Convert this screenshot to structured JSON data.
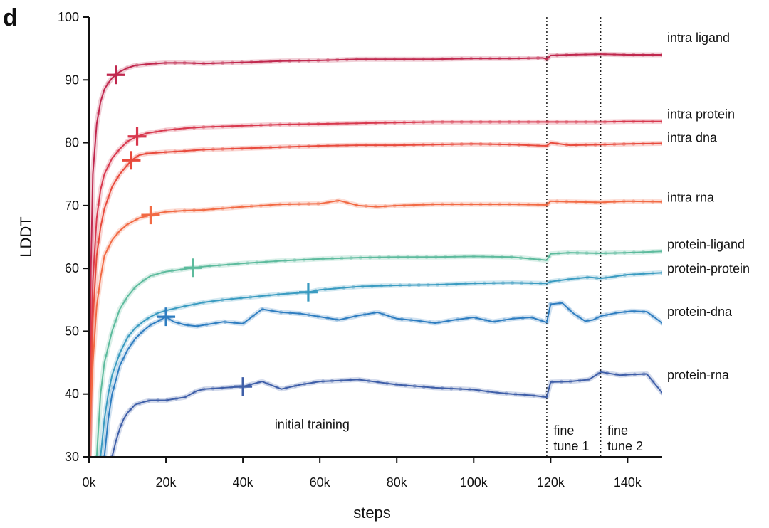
{
  "chart_data": {
    "type": "line",
    "panel_letter": "d",
    "xlabel": "steps",
    "ylabel": "LDDT",
    "xlim": [
      0,
      149000
    ],
    "ylim": [
      30,
      100
    ],
    "x_ticks": [
      0,
      20000,
      40000,
      60000,
      80000,
      100000,
      120000,
      140000
    ],
    "x_tick_labels": [
      "0k",
      "20k",
      "40k",
      "60k",
      "80k",
      "100k",
      "120k",
      "140k"
    ],
    "y_ticks": [
      30,
      40,
      50,
      60,
      70,
      80,
      90,
      100
    ],
    "y_tick_labels": [
      "30",
      "40",
      "50",
      "60",
      "70",
      "80",
      "90",
      "100"
    ],
    "grid": false,
    "phase_boundaries": [
      119000,
      133000
    ],
    "phases": [
      {
        "lines": [
          "initial training"
        ],
        "x": 58000,
        "y": 34.5
      },
      {
        "lines": [
          "fine",
          "tune 1"
        ],
        "x": 120000,
        "y": 33.5
      },
      {
        "lines": [
          "fine",
          "tune 2"
        ],
        "x": 134000,
        "y": 33.5
      }
    ],
    "series": [
      {
        "name": "intra ligand",
        "color": "#c0284e",
        "marker": {
          "x": 7000,
          "y": 90.8
        },
        "x": [
          0,
          500,
          1000,
          2000,
          3000,
          4000,
          5000,
          6000,
          7000,
          8000,
          10000,
          12000,
          15000,
          20000,
          25000,
          30000,
          40000,
          50000,
          60000,
          70000,
          80000,
          90000,
          100000,
          110000,
          118000,
          119000,
          120000,
          125000,
          133000,
          140000,
          149000
        ],
        "y": [
          30,
          60,
          75,
          83,
          86.5,
          88.5,
          89.5,
          90.3,
          90.8,
          91.3,
          91.9,
          92.3,
          92.5,
          92.7,
          92.7,
          92.6,
          92.8,
          93.0,
          93.1,
          93.3,
          93.3,
          93.3,
          93.4,
          93.4,
          93.5,
          93.3,
          93.9,
          94.0,
          94.1,
          94.0,
          94.0
        ]
      },
      {
        "name": "intra protein",
        "color": "#d8384e",
        "marker": {
          "x": 12500,
          "y": 81.0
        },
        "x": [
          0,
          500,
          1000,
          2000,
          3000,
          4000,
          6000,
          8000,
          10000,
          12500,
          15000,
          20000,
          25000,
          30000,
          40000,
          50000,
          60000,
          70000,
          80000,
          90000,
          100000,
          110000,
          119000,
          125000,
          133000,
          140000,
          149000
        ],
        "y": [
          30,
          45,
          58,
          68,
          72.5,
          75,
          77.5,
          79,
          80.2,
          81.0,
          81.5,
          82.0,
          82.3,
          82.5,
          82.7,
          82.9,
          83.0,
          83.1,
          83.2,
          83.3,
          83.3,
          83.3,
          83.3,
          83.3,
          83.3,
          83.4,
          83.4
        ]
      },
      {
        "name": "intra dna",
        "color": "#e84a3c",
        "marker": {
          "x": 11000,
          "y": 77.2
        },
        "x": [
          0,
          500,
          1000,
          2000,
          3000,
          4000,
          6000,
          8000,
          11000,
          13000,
          15000,
          20000,
          30000,
          40000,
          50000,
          60000,
          70000,
          80000,
          90000,
          100000,
          110000,
          119000,
          120000,
          125000,
          133000,
          140000,
          149000
        ],
        "y": [
          30,
          42,
          52,
          62,
          66.5,
          69.5,
          73,
          75,
          77.2,
          78.0,
          78.3,
          78.5,
          78.9,
          79.1,
          79.3,
          79.5,
          79.6,
          79.6,
          79.7,
          79.8,
          79.7,
          79.5,
          80.0,
          79.6,
          79.7,
          79.8,
          79.9
        ]
      },
      {
        "name": "intra rna",
        "color": "#f26a44",
        "marker": {
          "x": 16000,
          "y": 68.5
        },
        "x": [
          0,
          500,
          1000,
          2000,
          3000,
          4000,
          6000,
          8000,
          10000,
          13000,
          16000,
          18000,
          20000,
          25000,
          30000,
          40000,
          50000,
          60000,
          65000,
          70000,
          75000,
          80000,
          90000,
          100000,
          110000,
          119000,
          120000,
          125000,
          133000,
          140000,
          149000
        ],
        "y": [
          30,
          38,
          45,
          54,
          58.5,
          62,
          64.5,
          66,
          67,
          68,
          68.5,
          68.8,
          69.0,
          69.2,
          69.3,
          69.8,
          70.2,
          70.3,
          70.8,
          70.0,
          69.8,
          70.0,
          70.2,
          70.2,
          70.2,
          70.1,
          70.7,
          70.6,
          70.5,
          70.7,
          70.6
        ]
      },
      {
        "name": "protein-ligand",
        "color": "#5dbb9d",
        "marker": {
          "x": 27000,
          "y": 60.1
        },
        "x": [
          2000,
          3000,
          4000,
          6000,
          8000,
          10000,
          12000,
          14000,
          16000,
          20000,
          25000,
          27000,
          30000,
          40000,
          50000,
          60000,
          70000,
          80000,
          90000,
          100000,
          110000,
          119000,
          120000,
          125000,
          133000,
          140000,
          149000
        ],
        "y": [
          30,
          40,
          45,
          50,
          53.5,
          55.5,
          57,
          58,
          58.8,
          59.5,
          59.9,
          60.1,
          60.3,
          60.8,
          61.2,
          61.5,
          61.7,
          61.8,
          61.8,
          61.9,
          61.8,
          61.3,
          62.3,
          62.5,
          62.4,
          62.5,
          62.7
        ]
      },
      {
        "name": "protein-protein",
        "color": "#3a9bc1",
        "marker": {
          "x": 57000,
          "y": 56.2
        },
        "x": [
          3000,
          4000,
          5000,
          6000,
          8000,
          10000,
          12000,
          14000,
          16000,
          18000,
          20000,
          25000,
          30000,
          35000,
          40000,
          45000,
          50000,
          57000,
          60000,
          70000,
          80000,
          90000,
          100000,
          110000,
          119000,
          120000,
          125000,
          130000,
          133000,
          140000,
          149000
        ],
        "y": [
          30,
          36,
          40,
          43,
          46.5,
          49,
          50.5,
          51.5,
          52.3,
          52.9,
          53.3,
          54.0,
          54.6,
          55.0,
          55.3,
          55.6,
          55.9,
          56.2,
          56.6,
          57.1,
          57.3,
          57.4,
          57.6,
          57.7,
          57.6,
          57.9,
          58.3,
          58.6,
          58.4,
          59.0,
          59.3
        ]
      },
      {
        "name": "protein-dna",
        "color": "#2e7dc0",
        "marker": {
          "x": 20000,
          "y": 52.3
        },
        "x": [
          4000,
          5000,
          6000,
          8000,
          10000,
          12000,
          14000,
          16000,
          18000,
          20000,
          22000,
          25000,
          28000,
          30000,
          35000,
          40000,
          45000,
          50000,
          55000,
          60000,
          65000,
          70000,
          75000,
          80000,
          85000,
          90000,
          95000,
          100000,
          105000,
          110000,
          115000,
          119000,
          120000,
          123000,
          126000,
          129000,
          131000,
          133000,
          137000,
          141000,
          145000,
          149000
        ],
        "y": [
          30,
          36,
          40,
          44.5,
          47,
          48.8,
          50,
          51,
          51.6,
          52.3,
          51.5,
          51.0,
          50.8,
          51.0,
          51.5,
          51.2,
          53.5,
          53.0,
          52.8,
          52.3,
          51.8,
          52.5,
          53.0,
          52.0,
          51.7,
          51.3,
          51.8,
          52.2,
          51.5,
          52.0,
          52.2,
          51.4,
          54.3,
          54.5,
          52.8,
          51.6,
          51.8,
          52.4,
          52.9,
          53.2,
          53.1,
          51.3
        ]
      },
      {
        "name": "protein-rna",
        "color": "#3f5fa8",
        "marker": {
          "x": 40000,
          "y": 41.2
        },
        "x": [
          6000,
          7000,
          8000,
          9000,
          10000,
          12000,
          14000,
          16000,
          20000,
          25000,
          28000,
          30000,
          35000,
          40000,
          45000,
          50000,
          55000,
          60000,
          70000,
          80000,
          90000,
          100000,
          105000,
          110000,
          115000,
          119000,
          120000,
          125000,
          130000,
          133000,
          138000,
          141000,
          145000,
          149000
        ],
        "y": [
          30,
          32.5,
          34.5,
          36,
          37,
          38.3,
          38.7,
          39.0,
          39.0,
          39.5,
          40.5,
          40.8,
          41.0,
          41.2,
          42.0,
          40.8,
          41.5,
          42.0,
          42.3,
          41.5,
          41.0,
          40.7,
          40.3,
          40.0,
          39.8,
          39.5,
          41.9,
          42.0,
          42.3,
          43.5,
          43.0,
          43.1,
          43.2,
          40.2
        ]
      }
    ]
  }
}
